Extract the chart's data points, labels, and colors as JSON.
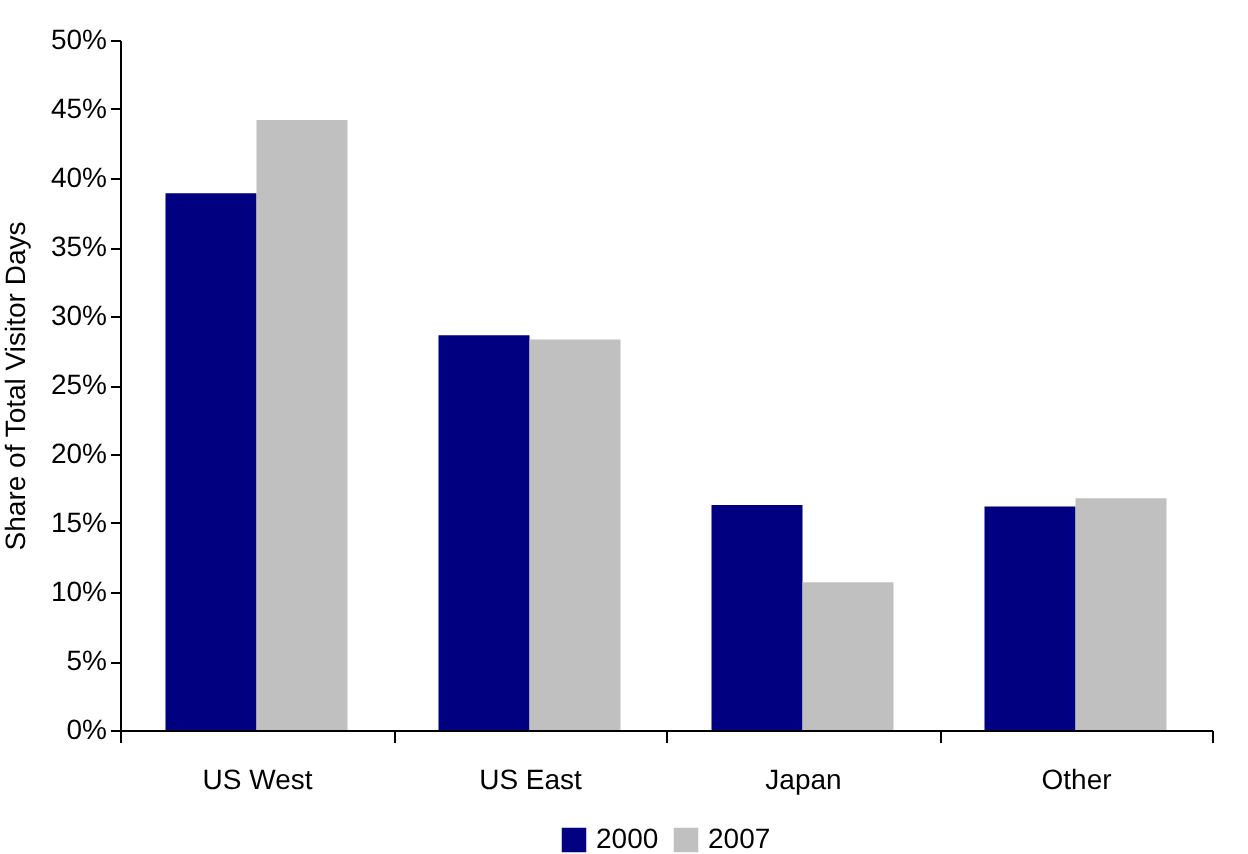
{
  "chart_data": {
    "type": "bar",
    "ylabel": "Share of Total Visitor Days",
    "categories": [
      "US West",
      "US East",
      "Japan",
      "Other"
    ],
    "series": [
      {
        "name": "2000",
        "color": "#000080",
        "values": [
          38.9,
          28.6,
          16.3,
          16.2
        ]
      },
      {
        "name": "2007",
        "color": "#c0c0c0",
        "values": [
          44.2,
          28.3,
          10.7,
          16.8
        ]
      }
    ],
    "ylim": [
      0,
      50
    ],
    "yticks": [
      {
        "value": 0,
        "label": "0%"
      },
      {
        "value": 5,
        "label": "5%"
      },
      {
        "value": 10,
        "label": "10%"
      },
      {
        "value": 15,
        "label": "15%"
      },
      {
        "value": 20,
        "label": "20%"
      },
      {
        "value": 25,
        "label": "25%"
      },
      {
        "value": 30,
        "label": "30%"
      },
      {
        "value": 35,
        "label": "35%"
      },
      {
        "value": 40,
        "label": "40%"
      },
      {
        "value": 45,
        "label": "45%"
      },
      {
        "value": 50,
        "label": "50%"
      }
    ],
    "grid": false,
    "legend": "bottom"
  }
}
